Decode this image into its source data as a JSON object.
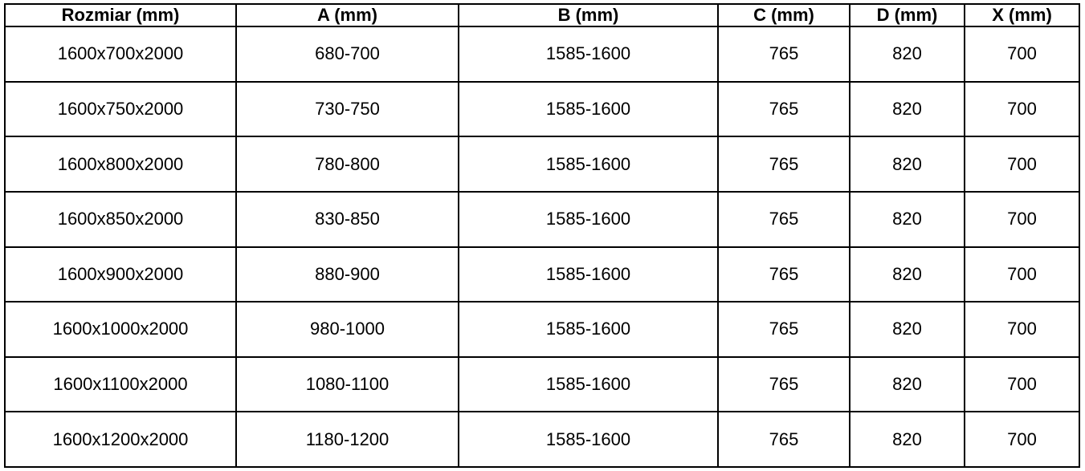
{
  "table": {
    "name": "size-specification-table",
    "headers": [
      "Rozmiar (mm)",
      "A (mm)",
      "B (mm)",
      "C (mm)",
      "D (mm)",
      "X (mm)"
    ],
    "rows": [
      [
        "1600x700x2000",
        "680-700",
        "1585-1600",
        "765",
        "820",
        "700"
      ],
      [
        "1600x750x2000",
        "730-750",
        "1585-1600",
        "765",
        "820",
        "700"
      ],
      [
        "1600x800x2000",
        "780-800",
        "1585-1600",
        "765",
        "820",
        "700"
      ],
      [
        "1600x850x2000",
        "830-850",
        "1585-1600",
        "765",
        "820",
        "700"
      ],
      [
        "1600x900x2000",
        "880-900",
        "1585-1600",
        "765",
        "820",
        "700"
      ],
      [
        "1600x1000x2000",
        "980-1000",
        "1585-1600",
        "765",
        "820",
        "700"
      ],
      [
        "1600x1100x2000",
        "1080-1100",
        "1585-1600",
        "765",
        "820",
        "700"
      ],
      [
        "1600x1200x2000",
        "1180-1200",
        "1585-1600",
        "765",
        "820",
        "700"
      ]
    ],
    "colors": {
      "border": "#000000",
      "text": "#000000",
      "background": "#ffffff"
    }
  }
}
